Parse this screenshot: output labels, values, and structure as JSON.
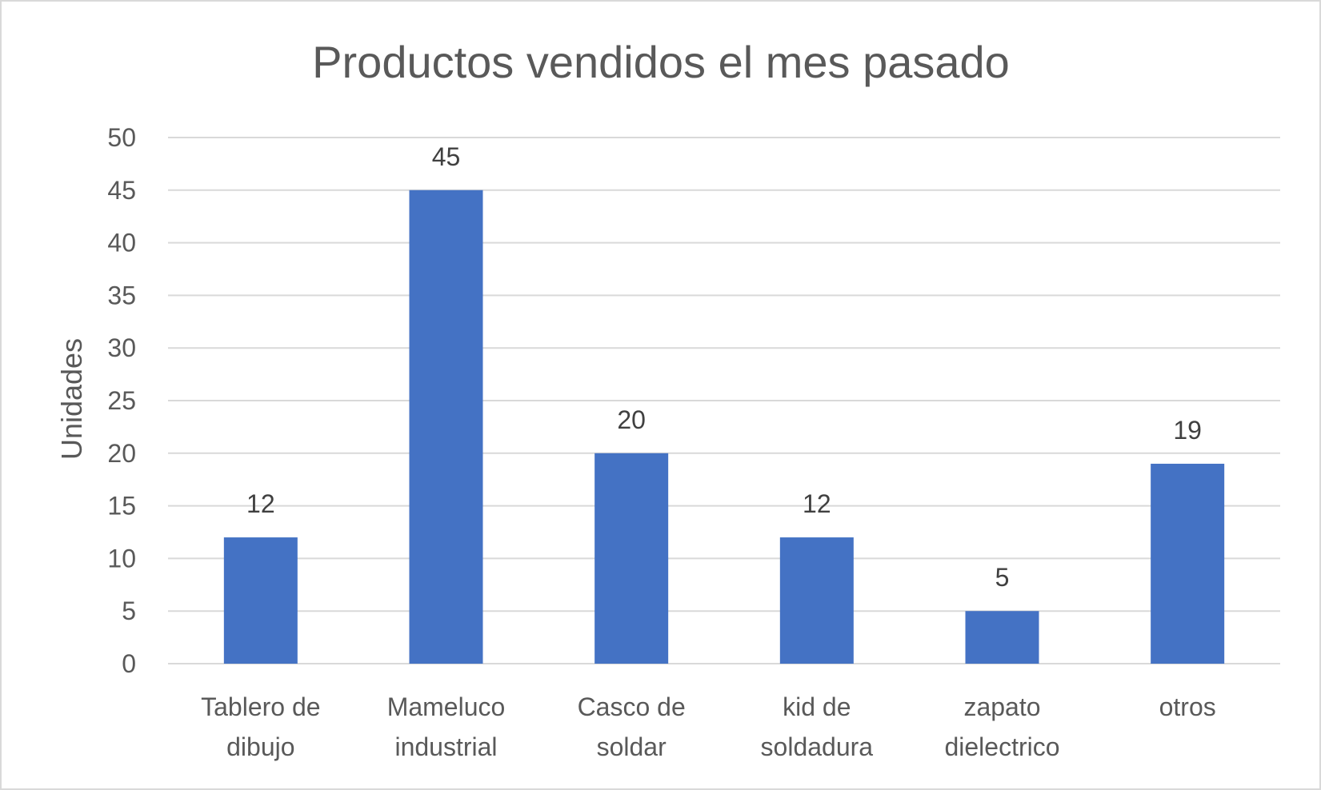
{
  "chart_data": {
    "type": "bar",
    "title": "Productos vendidos el mes pasado",
    "xlabel": "",
    "ylabel": "Unidades",
    "ylim": [
      0,
      50
    ],
    "yticks": [
      0,
      5,
      10,
      15,
      20,
      25,
      30,
      35,
      40,
      45,
      50
    ],
    "categories": [
      [
        "Tablero de",
        "dibujo"
      ],
      [
        "Mameluco",
        "industrial"
      ],
      [
        "Casco de",
        "soldar"
      ],
      [
        "kid de",
        "soldadura"
      ],
      [
        "zapato",
        "dielectrico"
      ],
      [
        "otros"
      ]
    ],
    "values": [
      12,
      45,
      20,
      12,
      5,
      19
    ],
    "data_labels": true,
    "grid": true,
    "legend": "none",
    "colors": {
      "bar": "#4472c4",
      "text": "#595959",
      "grid": "#d9d9d9"
    }
  }
}
